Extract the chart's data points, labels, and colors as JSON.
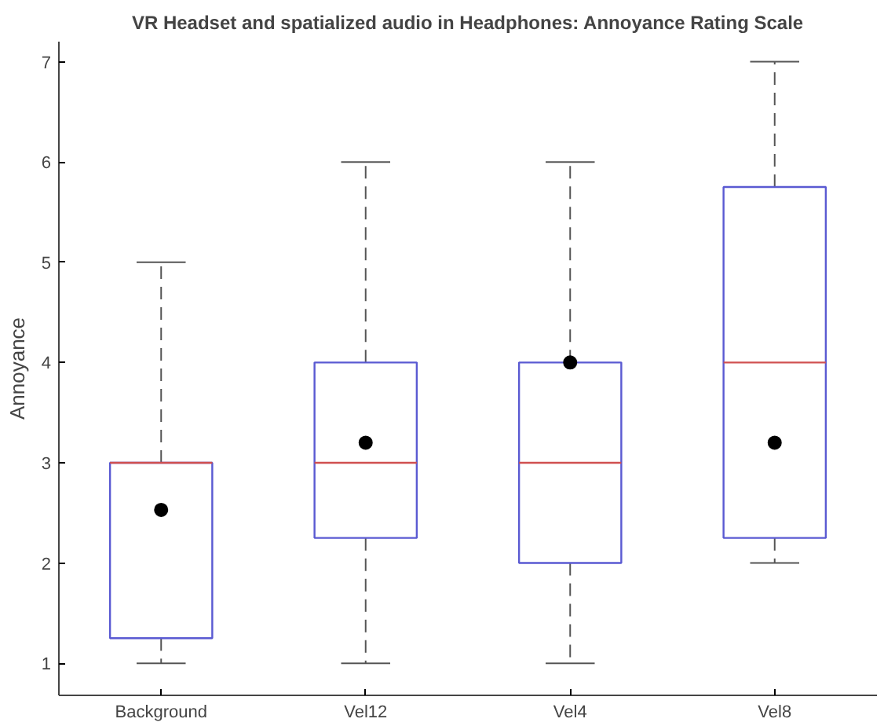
{
  "chart_data": {
    "type": "box",
    "title": "VR Headset and spatialized audio in Headphones: Annoyance Rating Scale",
    "ylabel": "Annoyance",
    "categories": [
      "Background",
      "Vel12",
      "Vel4",
      "Vel8"
    ],
    "boxes": [
      {
        "low": 1,
        "q1": 1.25,
        "median": 3,
        "q3": 3,
        "high": 5,
        "mean": 2.53
      },
      {
        "low": 1,
        "q1": 2.25,
        "median": 3,
        "q3": 4,
        "high": 6,
        "mean": 3.2
      },
      {
        "low": 1,
        "q1": 2,
        "median": 3,
        "q3": 4,
        "high": 6,
        "mean": 4
      },
      {
        "low": 2,
        "q1": 2.25,
        "median": 4,
        "q3": 5.75,
        "high": 7,
        "mean": 3.2
      }
    ],
    "color": "#5a5ad2",
    "ylim": [
      0.68,
      7.2
    ],
    "yticks": [
      1,
      2,
      3,
      4,
      5,
      6,
      7
    ],
    "grid": false
  }
}
